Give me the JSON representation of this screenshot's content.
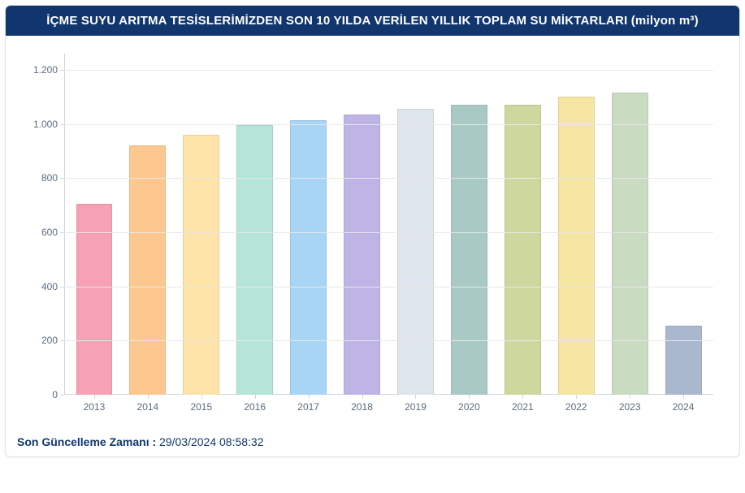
{
  "card": {
    "title": "İÇME SUYU ARITMA TESİSLERİMİZDEN SON 10 YILDA VERİLEN YILLIK TOPLAM SU MİKTARLARI (milyon m³)",
    "header_bg": "#11366e",
    "header_color": "#ffffff",
    "header_fontsize": 15,
    "border_color": "#d9e2ec"
  },
  "chart": {
    "type": "bar",
    "categories": [
      "2013",
      "2014",
      "2015",
      "2016",
      "2017",
      "2018",
      "2019",
      "2020",
      "2021",
      "2022",
      "2023",
      "2024"
    ],
    "values": [
      705,
      920,
      960,
      995,
      1015,
      1035,
      1055,
      1070,
      1070,
      1100,
      1115,
      255
    ],
    "bar_colors": [
      "#f7a1b4",
      "#fcc88f",
      "#fde3a7",
      "#b4e5d8",
      "#a8d5f5",
      "#bfb4e6",
      "#dfe5ec",
      "#a9c9c5",
      "#cdd79e",
      "#f5e6a3",
      "#c9dcc2",
      "#a9b7cf"
    ],
    "bar_border_color": "rgba(0,0,0,0.08)",
    "ylim": [
      0,
      1260
    ],
    "yticks": [
      0,
      200,
      400,
      600,
      800,
      1000,
      1200
    ],
    "ytick_labels": [
      "0",
      "200",
      "400",
      "600",
      "800",
      "1.000",
      "1.200"
    ],
    "grid_color": "#e8e8e8",
    "axis_color": "#cfd6dd",
    "label_color": "#5a6c7d",
    "label_fontsize": 12,
    "background_color": "#ffffff",
    "bar_width_ratio": 0.68
  },
  "footer": {
    "label": "Son Güncelleme Zamanı : ",
    "value": "29/03/2024 08:58:32",
    "color": "#11366e",
    "fontsize": 14
  }
}
